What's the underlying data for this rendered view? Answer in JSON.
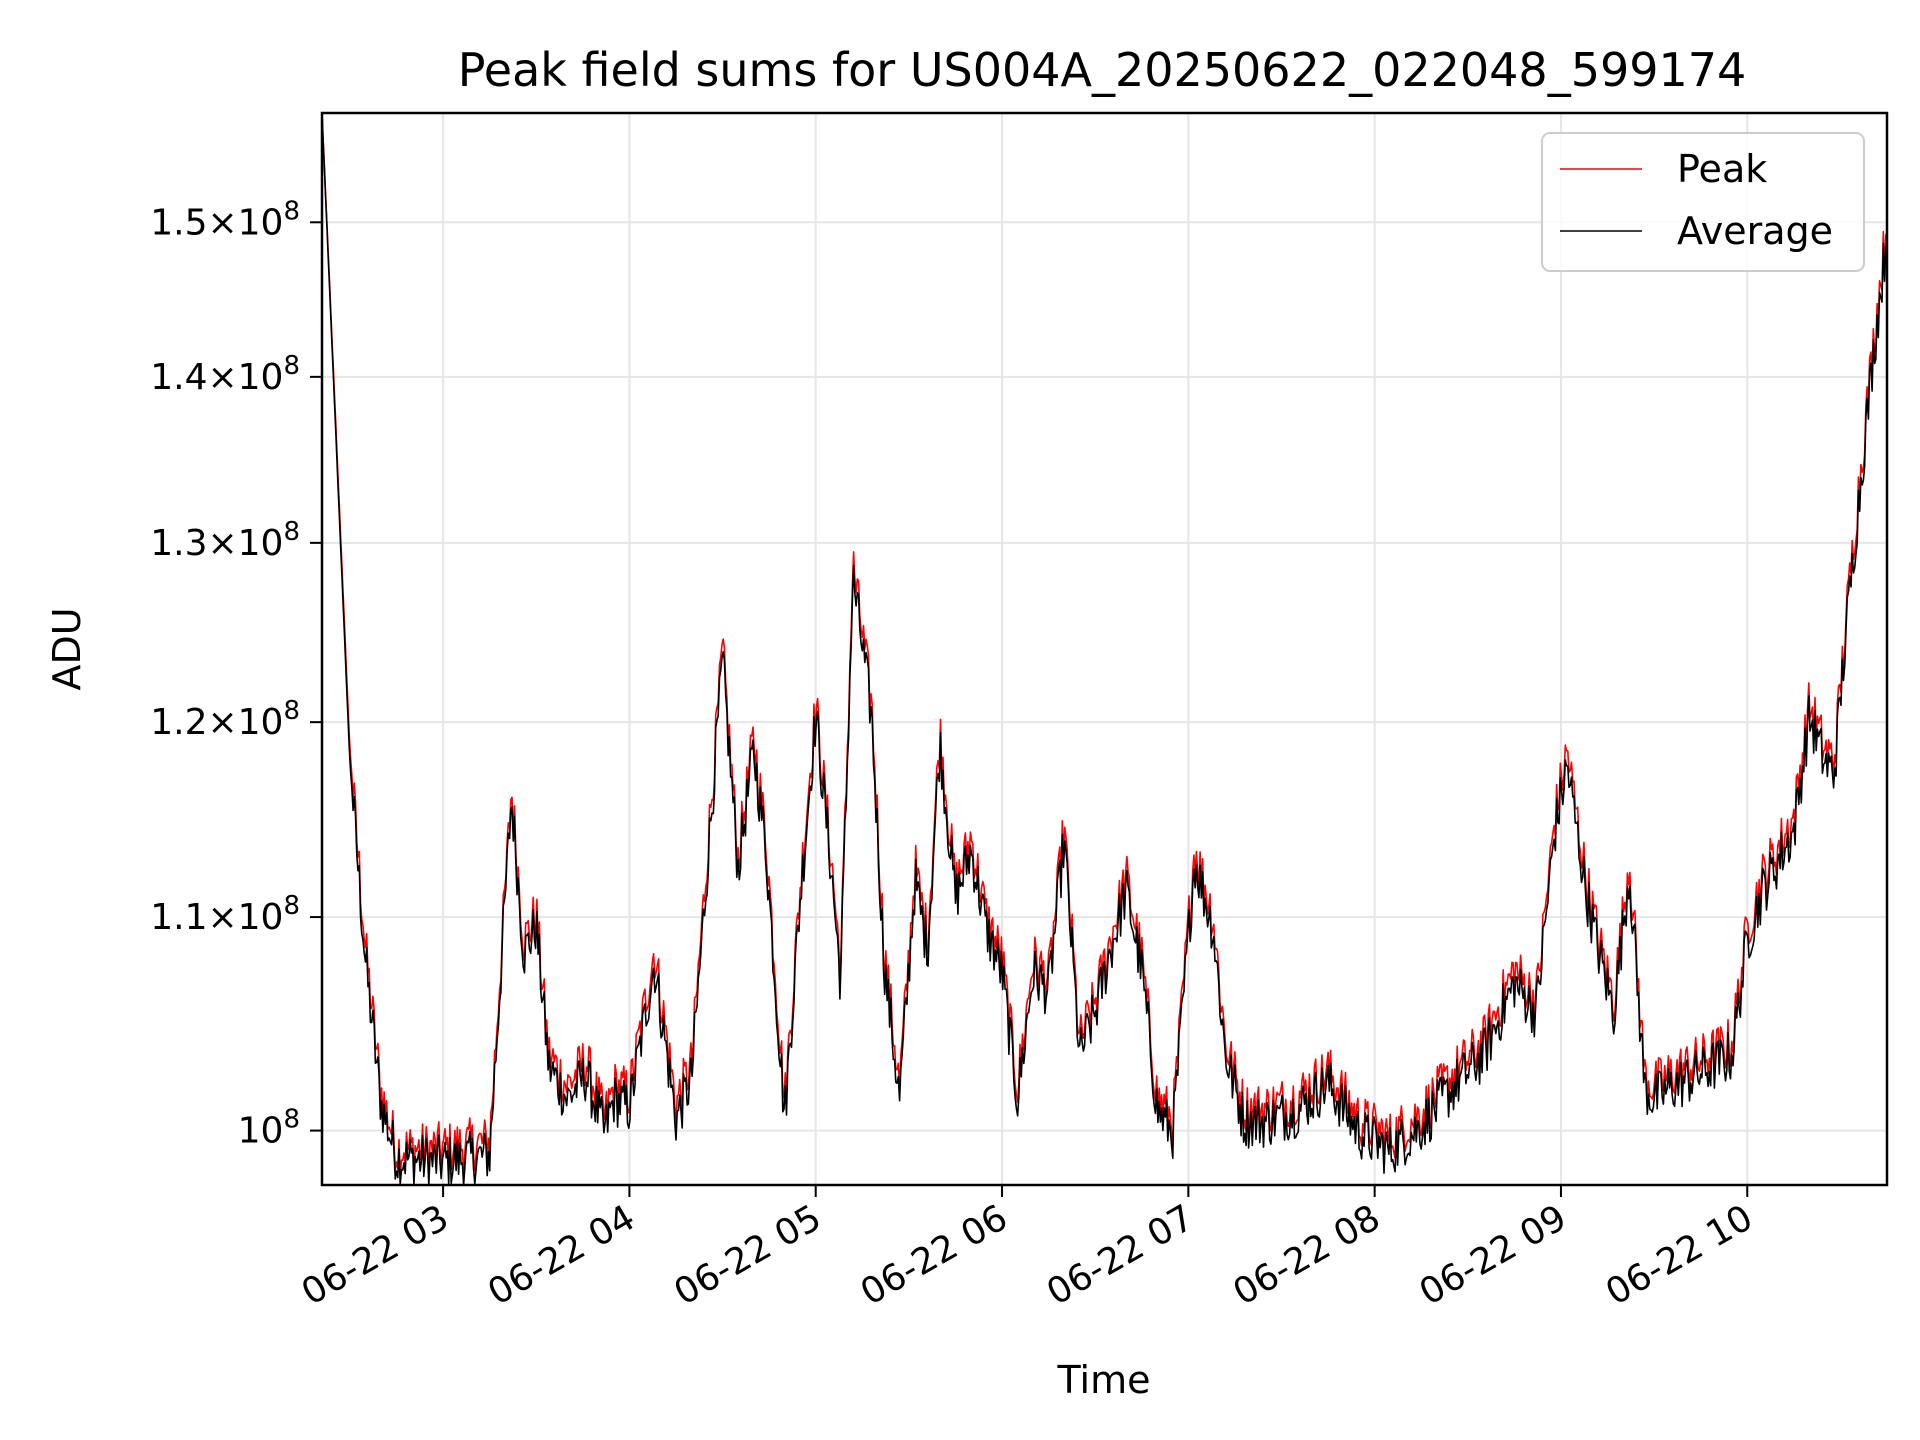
{
  "chart_data": {
    "type": "line",
    "title": "Peak field sums for US004A_20250622_022048_599174",
    "xlabel": "Time",
    "ylabel": "ADU",
    "y_scale": "log",
    "xlim": [
      "06-22 02:21",
      "06-22 10:45"
    ],
    "ylim": [
      97600000,
      157500000
    ],
    "grid": true,
    "legend_position": "top-right",
    "x_ticks": [
      "06-22 03",
      "06-22 04",
      "06-22 05",
      "06-22 06",
      "06-22 07",
      "06-22 08",
      "06-22 09",
      "06-22 10"
    ],
    "y_ticks": [
      {
        "value": 100000000,
        "base": "10",
        "exp": "8",
        "mant": ""
      },
      {
        "value": 110000000,
        "base": "10",
        "exp": "8",
        "mant": "1.1"
      },
      {
        "value": 120000000,
        "base": "10",
        "exp": "8",
        "mant": "1.2"
      },
      {
        "value": 130000000,
        "base": "10",
        "exp": "8",
        "mant": "1.3"
      },
      {
        "value": 140000000,
        "base": "10",
        "exp": "8",
        "mant": "1.4"
      },
      {
        "value": 150000000,
        "base": "10",
        "exp": "8",
        "mant": "1.5"
      }
    ],
    "x": [
      "06-22 02:21",
      "06-22 02:25",
      "06-22 02:30",
      "06-22 02:35",
      "06-22 02:40",
      "06-22 02:45",
      "06-22 03:00",
      "06-22 03:15",
      "06-22 03:22",
      "06-22 03:26",
      "06-22 03:30",
      "06-22 03:34",
      "06-22 03:40",
      "06-22 03:46",
      "06-22 03:52",
      "06-22 03:55",
      "06-22 04:00",
      "06-22 04:08",
      "06-22 04:15",
      "06-22 04:20",
      "06-22 04:25",
      "06-22 04:30",
      "06-22 04:35",
      "06-22 04:40",
      "06-22 04:44",
      "06-22 04:50",
      "06-22 04:55",
      "06-22 05:00",
      "06-22 05:05",
      "06-22 05:08",
      "06-22 05:12",
      "06-22 05:18",
      "06-22 05:22",
      "06-22 05:27",
      "06-22 05:32",
      "06-22 05:36",
      "06-22 05:40",
      "06-22 05:45",
      "06-22 05:50",
      "06-22 05:55",
      "06-22 06:00",
      "06-22 06:05",
      "06-22 06:10",
      "06-22 06:15",
      "06-22 06:20",
      "06-22 06:25",
      "06-22 06:30",
      "06-22 06:35",
      "06-22 06:40",
      "06-22 06:45",
      "06-22 06:50",
      "06-22 06:55",
      "06-22 07:02",
      "06-22 07:08",
      "06-22 07:12",
      "06-22 07:18",
      "06-22 07:25",
      "06-22 07:35",
      "06-22 07:45",
      "06-22 07:55",
      "06-22 08:05",
      "06-22 08:15",
      "06-22 08:25",
      "06-22 08:35",
      "06-22 08:45",
      "06-22 08:52",
      "06-22 08:58",
      "06-22 09:02",
      "06-22 09:08",
      "06-22 09:12",
      "06-22 09:17",
      "06-22 09:22",
      "06-22 09:27",
      "06-22 09:30",
      "06-22 09:35",
      "06-22 09:45",
      "06-22 09:55",
      "06-22 10:00",
      "06-22 10:05",
      "06-22 10:10",
      "06-22 10:15",
      "06-22 10:20",
      "06-22 10:25",
      "06-22 10:28",
      "06-22 10:32",
      "06-22 10:35",
      "06-22 10:40",
      "06-22 10:45"
    ],
    "series": [
      {
        "name": "Peak",
        "color": "#ff0000",
        "values": [
          157500000,
          139000000,
          118500000,
          108500000,
          101800000,
          99200000,
          99200000,
          99500000,
          116500000,
          108800000,
          110200000,
          103500000,
          102000000,
          103200000,
          100500000,
          102000000,
          101700000,
          108400000,
          101200000,
          103000000,
          113000000,
          124000000,
          113000000,
          119200000,
          114000000,
          101200000,
          111500000,
          121000000,
          113000000,
          107500000,
          128800000,
          121000000,
          108500000,
          102000000,
          112500000,
          109000000,
          119500000,
          111500000,
          114000000,
          110000000,
          108000000,
          102000000,
          108000000,
          107000000,
          114500000,
          104000000,
          106000000,
          109000000,
          112000000,
          108000000,
          101500000,
          100500000,
          113500000,
          110000000,
          104000000,
          101000000,
          101000000,
          101500000,
          102700000,
          100500000,
          99700000,
          100800000,
          102500000,
          104000000,
          107500000,
          106000000,
          115000000,
          118500000,
          112000000,
          109000000,
          106000000,
          113000000,
          102500000,
          102000000,
          102500000,
          103200000,
          104000000,
          109500000,
          112000000,
          113500000,
          115000000,
          121000000,
          118500000,
          118000000,
          126000000,
          131500000,
          141000000,
          150000000
        ]
      },
      {
        "name": "Average",
        "color": "#000000",
        "values": [
          157500000,
          138500000,
          117800000,
          107800000,
          101200000,
          98800000,
          98600000,
          98900000,
          116000000,
          108200000,
          109600000,
          102900000,
          101400000,
          102500000,
          99900000,
          101400000,
          101000000,
          107700000,
          100500000,
          102300000,
          112300000,
          123300000,
          112400000,
          118500000,
          113300000,
          100600000,
          110900000,
          120300000,
          112400000,
          106900000,
          128000000,
          120300000,
          107800000,
          101400000,
          111800000,
          108400000,
          118800000,
          110900000,
          113300000,
          109400000,
          107300000,
          101400000,
          107300000,
          106400000,
          113800000,
          103400000,
          105400000,
          108400000,
          111300000,
          107400000,
          100900000,
          99900000,
          112800000,
          109400000,
          103400000,
          100400000,
          100400000,
          100900000,
          102100000,
          99900000,
          99100000,
          100200000,
          101900000,
          103400000,
          106800000,
          105400000,
          114300000,
          117700000,
          111300000,
          108400000,
          105400000,
          112300000,
          101900000,
          101400000,
          101900000,
          102600000,
          103400000,
          108800000,
          111300000,
          112800000,
          114300000,
          120300000,
          117800000,
          117300000,
          125300000,
          130700000,
          140300000,
          149200000
        ]
      }
    ]
  }
}
